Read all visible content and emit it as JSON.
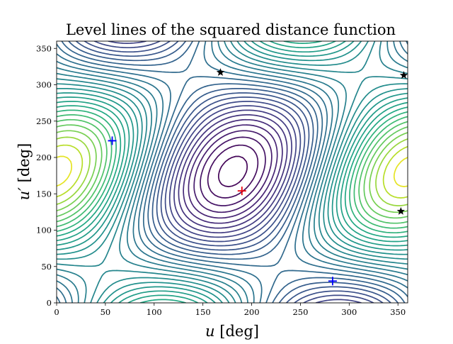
{
  "chart_data": {
    "type": "contour",
    "title": "Level lines of the squared distance function",
    "xlabel_var": "u",
    "xlabel_unit": "[deg]",
    "ylabel_var": "u′",
    "ylabel_unit": "[deg]",
    "xlim": [
      0,
      360
    ],
    "ylim": [
      0,
      360
    ],
    "xticks": [
      0,
      50,
      100,
      150,
      200,
      250,
      300,
      350
    ],
    "yticks": [
      0,
      50,
      100,
      150,
      200,
      250,
      300,
      350
    ],
    "colormap": "viridis",
    "level_count": 34,
    "maximum": {
      "x": 190,
      "y": 154,
      "color": "#e8000b",
      "marker": "plus"
    },
    "minima": [
      {
        "x": 57,
        "y": 223,
        "color": "#0000ff",
        "marker": "plus"
      },
      {
        "x": 283,
        "y": 30,
        "color": "#0000ff",
        "marker": "plus"
      }
    ],
    "saddles": [
      {
        "x": 168,
        "y": 317,
        "marker": "star"
      },
      {
        "x": 356,
        "y": 313,
        "marker": "star"
      },
      {
        "x": 353,
        "y": 126,
        "marker": "star"
      }
    ]
  }
}
